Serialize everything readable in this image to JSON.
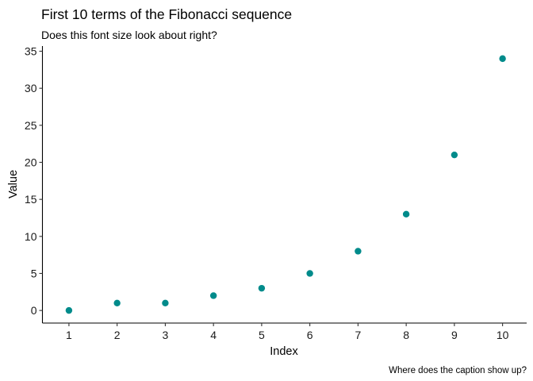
{
  "chart_data": {
    "type": "scatter",
    "title": "First 10 terms of the Fibonacci sequence",
    "subtitle": "Does this font size look about right?",
    "caption": "Where does the caption show up?",
    "xlabel": "Index",
    "ylabel": "Value",
    "x": [
      1,
      2,
      3,
      4,
      5,
      6,
      7,
      8,
      9,
      10
    ],
    "y": [
      0,
      1,
      1,
      2,
      3,
      5,
      8,
      13,
      21,
      34
    ],
    "x_ticks": [
      1,
      2,
      3,
      4,
      5,
      6,
      7,
      8,
      9,
      10
    ],
    "y_ticks": [
      0,
      5,
      10,
      15,
      20,
      25,
      30,
      35
    ],
    "xlim": [
      0.45,
      10.5
    ],
    "ylim": [
      -1.7,
      35.7
    ],
    "grid": false,
    "point_color": "#008B8B"
  }
}
